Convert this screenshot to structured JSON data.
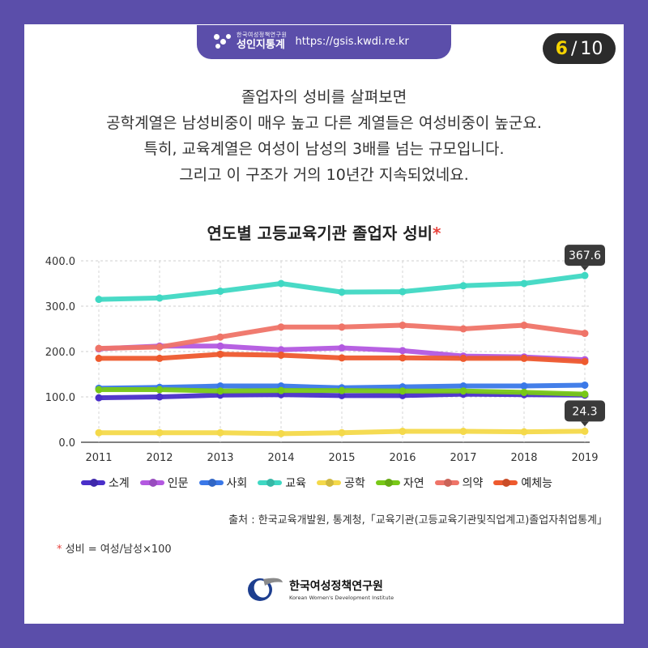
{
  "header": {
    "org_small": "한국여성정책연구원",
    "brand": "성인지통계",
    "url": "https://gsis.kwdi.re.kr"
  },
  "page": {
    "current": "6",
    "sep": "/",
    "total": "10"
  },
  "intro": [
    "졸업자의 성비를 살펴보면",
    "공학계열은 남성비중이 매우 높고 다른 계열들은 여성비중이 높군요.",
    "특히, 교육계열은 여성이 남성의 3배를 넘는 규모입니다.",
    "그리고 이 구조가 거의 10년간 지속되었네요."
  ],
  "chart_title": {
    "text": "연도별 고등교육기관 졸업자 성비",
    "star": "*"
  },
  "chart_data": {
    "type": "line",
    "title": "연도별 고등교육기관 졸업자 성비*",
    "x": [
      "2011",
      "2012",
      "2013",
      "2014",
      "2015",
      "2016",
      "2017",
      "2018",
      "2019"
    ],
    "ylim": [
      0,
      400
    ],
    "yticks": [
      "0.0",
      "100.0",
      "200.0",
      "300.0",
      "400.0"
    ],
    "grid": true,
    "legend": "bottom",
    "series": [
      {
        "name": "소계",
        "color": "#4a2fc9",
        "values": [
          98,
          100,
          104,
          105,
          103,
          103,
          106,
          105,
          104
        ]
      },
      {
        "name": "인문",
        "color": "#b359e0",
        "values": [
          206,
          212,
          212,
          204,
          208,
          202,
          190,
          188,
          182
        ]
      },
      {
        "name": "사회",
        "color": "#3a78e8",
        "values": [
          119,
          121,
          124,
          124,
          120,
          122,
          124,
          124,
          126
        ]
      },
      {
        "name": "교육",
        "color": "#3fd8c3",
        "values": [
          315,
          318,
          333,
          350,
          331,
          332,
          345,
          350,
          367.6
        ]
      },
      {
        "name": "공학",
        "color": "#f4d94a",
        "values": [
          21,
          21,
          21,
          19,
          21,
          24,
          24,
          23,
          24.3
        ]
      },
      {
        "name": "자연",
        "color": "#78c817",
        "values": [
          116,
          116,
          113,
          114,
          114,
          113,
          113,
          110,
          106
        ]
      },
      {
        "name": "의약",
        "color": "#ef7468",
        "values": [
          207,
          210,
          232,
          254,
          254,
          258,
          250,
          258,
          240
        ]
      },
      {
        "name": "예체능",
        "color": "#ee5a2e",
        "values": [
          185,
          185,
          194,
          192,
          186,
          186,
          185,
          185,
          178
        ]
      }
    ],
    "annotations": [
      {
        "series": "교육",
        "x": "2019",
        "label": "367.6"
      },
      {
        "series": "공학",
        "x": "2019",
        "label": "24.3"
      }
    ]
  },
  "source": "출처 : 한국교육개발원, 통계청,「교육기관(고등교육기관및직업계고)졸업자취업통계」",
  "footnote": {
    "star": "*",
    "text": "성비 = 여성/남성×100"
  },
  "logo": {
    "ko": "한국여성정책연구원",
    "en": "Korean Women's Development Institute"
  }
}
